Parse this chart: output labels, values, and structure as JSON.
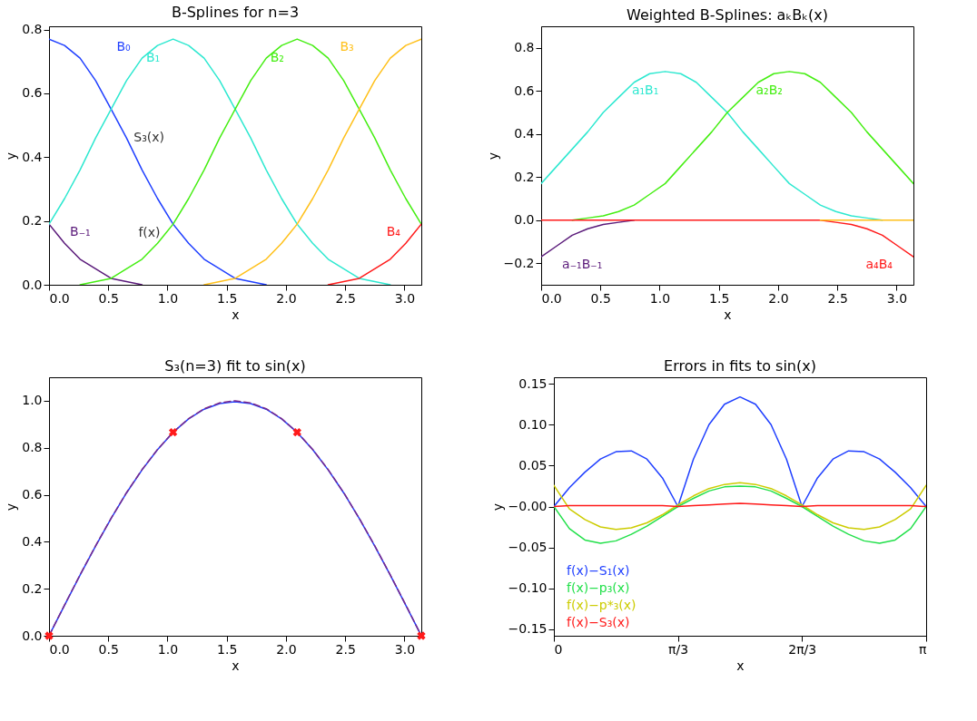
{
  "chart_data": [
    {
      "type": "line",
      "title": "B-Splines for n=3",
      "xlabel": "x",
      "ylabel": "y",
      "x": [
        0,
        0.131,
        0.262,
        0.393,
        0.524,
        0.654,
        0.785,
        0.916,
        1.047,
        1.178,
        1.309,
        1.44,
        1.571,
        1.702,
        1.833,
        1.963,
        2.094,
        2.225,
        2.356,
        2.487,
        2.618,
        2.749,
        2.88,
        3.011,
        3.142
      ],
      "xlim": [
        0,
        3.142
      ],
      "ylim": [
        0,
        0.81
      ],
      "xticks": [
        {
          "value": 0,
          "label": "0.0"
        },
        {
          "value": 0.5,
          "label": "0.5"
        },
        {
          "value": 1,
          "label": "1.0"
        },
        {
          "value": 1.5,
          "label": "1.5"
        },
        {
          "value": 2,
          "label": "2.0"
        },
        {
          "value": 2.5,
          "label": "2.5"
        },
        {
          "value": 3,
          "label": "3.0"
        }
      ],
      "yticks": [
        {
          "value": 0,
          "label": "0.0"
        },
        {
          "value": 0.2,
          "label": "0.2"
        },
        {
          "value": 0.4,
          "label": "0.4"
        },
        {
          "value": 0.6,
          "label": "0.6"
        },
        {
          "value": 0.8,
          "label": "0.8"
        }
      ],
      "series": [
        {
          "name": "B₋₁",
          "color": "#5a1a7a",
          "values": [
            0.19,
            0.13,
            0.08,
            0.05,
            0.02,
            0.01,
            0,
            null,
            null,
            null,
            null,
            null,
            null,
            null,
            null,
            null,
            null,
            null,
            null,
            null,
            null,
            null,
            null,
            null,
            null
          ]
        },
        {
          "name": "B₀",
          "color": "#1f3fff",
          "values": [
            0.77,
            0.75,
            0.71,
            0.64,
            0.55,
            0.46,
            0.36,
            0.27,
            0.19,
            0.13,
            0.08,
            0.05,
            0.02,
            0.01,
            0,
            null,
            null,
            null,
            null,
            null,
            null,
            null,
            null,
            null,
            null
          ]
        },
        {
          "name": "B₁",
          "color": "#2de8d0",
          "values": [
            0.19,
            0.27,
            0.36,
            0.46,
            0.55,
            0.64,
            0.71,
            0.75,
            0.77,
            0.75,
            0.71,
            0.64,
            0.55,
            0.46,
            0.36,
            0.27,
            0.19,
            0.13,
            0.08,
            0.05,
            0.02,
            0.01,
            0,
            null,
            null
          ]
        },
        {
          "name": "B₂",
          "color": "#44ee11",
          "values": [
            null,
            null,
            0,
            0.01,
            0.02,
            0.05,
            0.08,
            0.13,
            0.19,
            0.27,
            0.36,
            0.46,
            0.55,
            0.64,
            0.71,
            0.75,
            0.77,
            0.75,
            0.71,
            0.64,
            0.55,
            0.46,
            0.36,
            0.27,
            0.19
          ]
        },
        {
          "name": "B₃",
          "color": "#ffc01a",
          "values": [
            null,
            null,
            null,
            null,
            null,
            null,
            null,
            null,
            null,
            null,
            0,
            0.01,
            0.02,
            0.05,
            0.08,
            0.13,
            0.19,
            0.27,
            0.36,
            0.46,
            0.55,
            0.64,
            0.71,
            0.75,
            0.77
          ]
        },
        {
          "name": "B₄",
          "color": "#ff1a1a",
          "values": [
            null,
            null,
            null,
            null,
            null,
            null,
            null,
            null,
            null,
            null,
            null,
            null,
            null,
            null,
            null,
            null,
            null,
            null,
            0,
            0.01,
            0.02,
            0.05,
            0.08,
            0.13,
            0.19
          ]
        }
      ],
      "annotations": [
        {
          "text": "S₃(x)",
          "x": 0.654,
          "y": 0.46
        },
        "f(x)"
      ]
    },
    {
      "type": "line",
      "title": "Weighted B-Splines: aₖBₖ(x)",
      "xlabel": "x",
      "ylabel": "y",
      "x": [
        0,
        0.131,
        0.262,
        0.393,
        0.524,
        0.654,
        0.785,
        0.916,
        1.047,
        1.178,
        1.309,
        1.44,
        1.571,
        1.702,
        1.833,
        1.963,
        2.094,
        2.225,
        2.356,
        2.487,
        2.618,
        2.749,
        2.88,
        3.011,
        3.142
      ],
      "xlim": [
        0,
        3.142
      ],
      "ylim": [
        -0.3,
        0.9
      ],
      "xticks": [
        {
          "value": 0,
          "label": "0.0"
        },
        {
          "value": 0.5,
          "label": "0.5"
        },
        {
          "value": 1,
          "label": "1.0"
        },
        {
          "value": 1.5,
          "label": "1.5"
        },
        {
          "value": 2,
          "label": "2.0"
        },
        {
          "value": 2.5,
          "label": "2.5"
        },
        {
          "value": 3,
          "label": "3.0"
        }
      ],
      "yticks": [
        {
          "value": -0.2,
          "label": "−0.2"
        },
        {
          "value": 0,
          "label": "0.0"
        },
        {
          "value": 0.2,
          "label": "0.2"
        },
        {
          "value": 0.4,
          "label": "0.4"
        },
        {
          "value": 0.6,
          "label": "0.6"
        },
        {
          "value": 0.8,
          "label": "0.8"
        }
      ],
      "series": [
        {
          "name": "a₋₁B₋₁",
          "color": "#5a1a7a",
          "values": [
            -0.17,
            -0.12,
            -0.07,
            -0.04,
            -0.02,
            -0.01,
            0,
            null,
            null,
            null,
            null,
            null,
            null,
            null,
            null,
            null,
            null,
            null,
            null,
            null,
            null,
            null,
            null,
            null,
            null
          ]
        },
        {
          "name": "a₁B₁",
          "color": "#2de8d0",
          "values": [
            0.17,
            0.25,
            0.33,
            0.41,
            0.5,
            0.57,
            0.64,
            0.68,
            0.69,
            0.68,
            0.64,
            0.57,
            0.5,
            0.41,
            0.33,
            0.25,
            0.17,
            0.12,
            0.07,
            0.04,
            0.02,
            0.01,
            0,
            null,
            null
          ]
        },
        {
          "name": "a₂B₂",
          "color": "#44ee11",
          "values": [
            null,
            null,
            0,
            0.01,
            0.02,
            0.04,
            0.07,
            0.12,
            0.17,
            0.25,
            0.33,
            0.41,
            0.5,
            0.57,
            0.64,
            0.68,
            0.69,
            0.68,
            0.64,
            0.57,
            0.5,
            0.41,
            0.33,
            0.25,
            0.17
          ]
        },
        {
          "name": "a₄B₄",
          "color": "#ff1a1a",
          "values": [
            0,
            0,
            0,
            0,
            0,
            0,
            0,
            0,
            0,
            0,
            0,
            0,
            0,
            0,
            0,
            0,
            0,
            0,
            0,
            -0.01,
            -0.02,
            -0.04,
            -0.07,
            -0.12,
            -0.17
          ]
        },
        {
          "color": "#ffc01a",
          "values": [
            null,
            null,
            null,
            null,
            null,
            null,
            null,
            null,
            null,
            null,
            null,
            null,
            null,
            null,
            null,
            null,
            null,
            null,
            0,
            0,
            0,
            0,
            0,
            0,
            0
          ]
        }
      ]
    },
    {
      "type": "line",
      "title": "S₃(n=3) fit to sin(x)",
      "xlabel": "x",
      "ylabel": "y",
      "x": [
        0,
        0.131,
        0.262,
        0.393,
        0.524,
        0.654,
        0.785,
        0.916,
        1.047,
        1.178,
        1.309,
        1.44,
        1.571,
        1.702,
        1.833,
        1.963,
        2.094,
        2.225,
        2.356,
        2.487,
        2.618,
        2.749,
        2.88,
        3.011,
        3.142
      ],
      "xlim": [
        0,
        3.142
      ],
      "ylim": [
        0,
        1.1
      ],
      "xticks": [
        {
          "value": 0,
          "label": "0.0"
        },
        {
          "value": 0.5,
          "label": "0.5"
        },
        {
          "value": 1,
          "label": "1.0"
        },
        {
          "value": 1.5,
          "label": "1.5"
        },
        {
          "value": 2,
          "label": "2.0"
        },
        {
          "value": 2.5,
          "label": "2.5"
        },
        {
          "value": 3,
          "label": "3.0"
        }
      ],
      "yticks": [
        {
          "value": 0,
          "label": "0.0"
        },
        {
          "value": 0.2,
          "label": "0.2"
        },
        {
          "value": 0.4,
          "label": "0.4"
        },
        {
          "value": 0.6,
          "label": "0.6"
        },
        {
          "value": 0.8,
          "label": "0.8"
        },
        {
          "value": 1,
          "label": "1.0"
        }
      ],
      "series": [
        {
          "color": "#1f3fff",
          "values": [
            0,
            0.13,
            0.258,
            0.382,
            0.499,
            0.608,
            0.706,
            0.792,
            0.866,
            0.923,
            0.964,
            0.988,
            0.996,
            0.988,
            0.964,
            0.923,
            0.866,
            0.792,
            0.706,
            0.608,
            0.499,
            0.382,
            0.258,
            0.13,
            0
          ]
        },
        {
          "color": "#7a2a8a",
          "line_style": "dashed",
          "values": [
            0,
            0.131,
            0.259,
            0.383,
            0.5,
            0.609,
            0.707,
            0.793,
            0.866,
            0.924,
            0.966,
            0.991,
            1.0,
            0.991,
            0.966,
            0.924,
            0.866,
            0.793,
            0.707,
            0.609,
            0.5,
            0.383,
            0.259,
            0.131,
            0
          ]
        },
        {
          "type": "scatter",
          "marker": "cross",
          "color": "#ff1a1a",
          "x": [
            0,
            1.047,
            2.094,
            3.142
          ],
          "values": [
            0,
            0.866,
            0.866,
            0
          ]
        }
      ]
    },
    {
      "type": "line",
      "title": "Errors in fits to sin(x)",
      "xlabel": "x",
      "ylabel": "y",
      "legend": "bottom left",
      "x": [
        0,
        0.131,
        0.262,
        0.393,
        0.524,
        0.654,
        0.785,
        0.916,
        1.047,
        1.178,
        1.309,
        1.44,
        1.571,
        1.702,
        1.833,
        1.963,
        2.094,
        2.225,
        2.356,
        2.487,
        2.618,
        2.749,
        2.88,
        3.011,
        3.142
      ],
      "xlim": [
        0,
        3.142
      ],
      "ylim": [
        -0.158,
        0.158
      ],
      "xticks": [
        {
          "value": 0,
          "label": "0"
        },
        {
          "value": 1.047,
          "label": "π/3"
        },
        {
          "value": 2.094,
          "label": "2π/3"
        },
        {
          "value": 3.142,
          "label": "π"
        }
      ],
      "yticks": [
        {
          "value": -0.15,
          "label": "−0.15"
        },
        {
          "value": -0.1,
          "label": "−0.10"
        },
        {
          "value": -0.05,
          "label": "−0.05"
        },
        {
          "value": 0,
          "label": "−0.00"
        },
        {
          "value": 0.05,
          "label": "0.05"
        },
        {
          "value": 0.1,
          "label": "0.10"
        },
        {
          "value": 0.15,
          "label": "0.15"
        }
      ],
      "series": [
        {
          "name": "f(x)−S₁(x)",
          "color": "#1f3fff",
          "values": [
            0,
            0.023,
            0.042,
            0.058,
            0.067,
            0.068,
            0.058,
            0.035,
            0,
            0.058,
            0.1,
            0.125,
            0.134,
            0.125,
            0.1,
            0.058,
            0,
            0.035,
            0.058,
            0.068,
            0.067,
            0.058,
            0.042,
            0.023,
            0
          ]
        },
        {
          "name": "f(x)−p₃(x)",
          "color": "#22e04a",
          "values": [
            0,
            -0.027,
            -0.041,
            -0.045,
            -0.042,
            -0.034,
            -0.024,
            -0.012,
            0,
            0.01,
            0.019,
            0.024,
            0.025,
            0.024,
            0.019,
            0.01,
            0,
            -0.012,
            -0.024,
            -0.034,
            -0.042,
            -0.045,
            -0.041,
            -0.027,
            0
          ]
        },
        {
          "name": "f(x)−p*₃(x)",
          "color": "#cccc00",
          "values": [
            0.026,
            -0.003,
            -0.016,
            -0.025,
            -0.028,
            -0.026,
            -0.02,
            -0.01,
            0.002,
            0.013,
            0.022,
            0.027,
            0.029,
            0.027,
            0.022,
            0.013,
            0.002,
            -0.01,
            -0.02,
            -0.026,
            -0.028,
            -0.025,
            -0.016,
            -0.003,
            0.026
          ]
        },
        {
          "name": "f(x)−S₃(x)",
          "color": "#ff1a1a",
          "values": [
            0,
            0.001,
            0.001,
            0.001,
            0.001,
            0.001,
            0.001,
            0.001,
            0,
            0.001,
            0.002,
            0.003,
            0.004,
            0.003,
            0.002,
            0.001,
            0,
            0.001,
            0.001,
            0.001,
            0.001,
            0.001,
            0.001,
            0.001,
            0
          ]
        }
      ]
    }
  ]
}
